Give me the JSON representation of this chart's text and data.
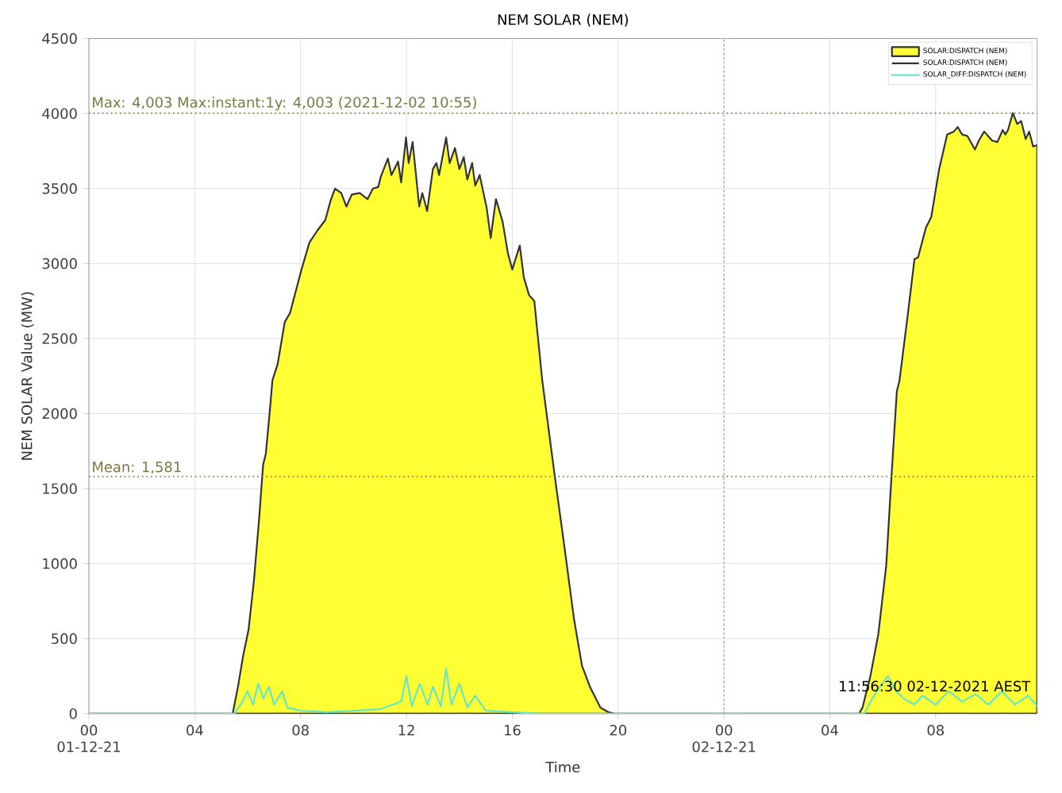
{
  "chart_data": {
    "type": "area",
    "title": "NEM SOLAR (NEM)",
    "xlabel": "Time",
    "ylabel": "NEM SOLAR Value (MW)",
    "xlim": [
      "2021-12-01T00:00",
      "2021-12-02T11:50"
    ],
    "ylim": [
      0,
      4500
    ],
    "xticks": [
      {
        "value": "2021-12-01T00:00",
        "label": "00\n01-12-21"
      },
      {
        "value": "2021-12-01T04:00",
        "label": "04"
      },
      {
        "value": "2021-12-01T08:00",
        "label": "08"
      },
      {
        "value": "2021-12-01T12:00",
        "label": "12"
      },
      {
        "value": "2021-12-01T16:00",
        "label": "16"
      },
      {
        "value": "2021-12-01T20:00",
        "label": "20"
      },
      {
        "value": "2021-12-02T00:00",
        "label": "00\n02-12-21"
      },
      {
        "value": "2021-12-02T04:00",
        "label": "04"
      },
      {
        "value": "2021-12-02T08:00",
        "label": "08"
      }
    ],
    "yticks": [
      0,
      500,
      1000,
      1500,
      2000,
      2500,
      3000,
      3500,
      4000,
      4500
    ],
    "grid": true,
    "legend": "top right",
    "marker": "none",
    "line_style": "solid",
    "series": [
      {
        "name": "SOLAR:DISPATCH (NEM)",
        "color": "#ffff33",
        "x": [
          "2021-12-01T00:00",
          "2021-12-01T05:26",
          "2021-12-01T05:38",
          "2021-12-01T05:50",
          "2021-12-01T06:02",
          "2021-12-01T06:14",
          "2021-12-01T06:26",
          "2021-12-01T06:35",
          "2021-12-01T06:41",
          "2021-12-01T06:50",
          "2021-12-01T06:56",
          "2021-12-01T07:08",
          "2021-12-01T07:24",
          "2021-12-01T07:36",
          "2021-12-01T08:02",
          "2021-12-01T08:20",
          "2021-12-01T08:38",
          "2021-12-01T08:56",
          "2021-12-01T09:08",
          "2021-12-01T09:18",
          "2021-12-01T09:32",
          "2021-12-01T09:44",
          "2021-12-01T09:56",
          "2021-12-01T10:14",
          "2021-12-01T10:32",
          "2021-12-01T10:44",
          "2021-12-01T10:56",
          "2021-12-01T11:02",
          "2021-12-01T11:18",
          "2021-12-01T11:26",
          "2021-12-01T11:41",
          "2021-12-01T11:48",
          "2021-12-01T11:59",
          "2021-12-01T12:05",
          "2021-12-01T12:14",
          "2021-12-01T12:29",
          "2021-12-01T12:36",
          "2021-12-01T12:47",
          "2021-12-01T13:00",
          "2021-12-01T13:08",
          "2021-12-01T13:14",
          "2021-12-01T13:30",
          "2021-12-01T13:38",
          "2021-12-01T13:50",
          "2021-12-01T14:00",
          "2021-12-01T14:10",
          "2021-12-01T14:18",
          "2021-12-01T14:29",
          "2021-12-01T14:36",
          "2021-12-01T14:46",
          "2021-12-01T15:02",
          "2021-12-01T15:11",
          "2021-12-01T15:23",
          "2021-12-01T15:38",
          "2021-12-01T15:50",
          "2021-12-01T16:00",
          "2021-12-01T16:17",
          "2021-12-01T16:26",
          "2021-12-01T16:38",
          "2021-12-01T16:50",
          "2021-12-01T16:56",
          "2021-12-01T17:08",
          "2021-12-01T17:36",
          "2021-12-01T17:56",
          "2021-12-01T18:20",
          "2021-12-01T18:38",
          "2021-12-01T18:56",
          "2021-12-01T19:20",
          "2021-12-01T19:38",
          "2021-12-01T19:54",
          "2021-12-02T05:06",
          "2021-12-02T05:14",
          "2021-12-02T05:32",
          "2021-12-02T05:50",
          "2021-12-02T06:08",
          "2021-12-02T06:20",
          "2021-12-02T06:32",
          "2021-12-02T06:38",
          "2021-12-02T06:56",
          "2021-12-02T07:12",
          "2021-12-02T07:20",
          "2021-12-02T07:38",
          "2021-12-02T07:50",
          "2021-12-02T08:08",
          "2021-12-02T08:26",
          "2021-12-02T08:41",
          "2021-12-02T08:50",
          "2021-12-02T09:00",
          "2021-12-02T09:12",
          "2021-12-02T09:29",
          "2021-12-02T09:38",
          "2021-12-02T09:50",
          "2021-12-02T10:08",
          "2021-12-02T10:20",
          "2021-12-02T10:32",
          "2021-12-02T10:38",
          "2021-12-02T10:44",
          "2021-12-02T10:55",
          "2021-12-02T11:05",
          "2021-12-02T11:14",
          "2021-12-02T11:24",
          "2021-12-02T11:32",
          "2021-12-02T11:41",
          "2021-12-02T11:50"
        ],
        "values": [
          0,
          0,
          180,
          390,
          560,
          880,
          1300,
          1660,
          1730,
          2010,
          2220,
          2330,
          2610,
          2670,
          2960,
          3140,
          3220,
          3290,
          3420,
          3500,
          3470,
          3380,
          3460,
          3470,
          3430,
          3500,
          3510,
          3580,
          3700,
          3590,
          3680,
          3540,
          3840,
          3670,
          3810,
          3380,
          3470,
          3350,
          3630,
          3670,
          3590,
          3840,
          3670,
          3770,
          3630,
          3710,
          3560,
          3670,
          3520,
          3590,
          3370,
          3170,
          3430,
          3280,
          3070,
          2960,
          3120,
          2910,
          2790,
          2750,
          2570,
          2220,
          1590,
          1160,
          630,
          320,
          180,
          40,
          10,
          0,
          0,
          40,
          250,
          530,
          990,
          1590,
          2150,
          2220,
          2640,
          3030,
          3040,
          3240,
          3310,
          3630,
          3860,
          3880,
          3910,
          3860,
          3850,
          3760,
          3820,
          3880,
          3820,
          3810,
          3890,
          3860,
          3890,
          4003,
          3930,
          3950,
          3830,
          3880,
          3780,
          3790
        ]
      },
      {
        "name": "SOLAR_DIFF:DISPATCH (NEM)",
        "type": "line",
        "color": "#66e6c8",
        "x": [
          "2021-12-01T00:00",
          "2021-12-01T05:30",
          "2021-12-01T05:48",
          "2021-12-01T06:00",
          "2021-12-01T06:12",
          "2021-12-01T06:24",
          "2021-12-01T06:36",
          "2021-12-01T06:48",
          "2021-12-01T07:00",
          "2021-12-01T07:18",
          "2021-12-01T07:30",
          "2021-12-01T08:00",
          "2021-12-01T09:00",
          "2021-12-01T10:00",
          "2021-12-01T11:00",
          "2021-12-01T11:48",
          "2021-12-01T12:00",
          "2021-12-01T12:12",
          "2021-12-01T12:30",
          "2021-12-01T12:48",
          "2021-12-01T13:00",
          "2021-12-01T13:18",
          "2021-12-01T13:30",
          "2021-12-01T13:42",
          "2021-12-01T14:00",
          "2021-12-01T14:18",
          "2021-12-01T14:36",
          "2021-12-01T15:00",
          "2021-12-01T16:00",
          "2021-12-01T17:00",
          "2021-12-02T05:18",
          "2021-12-02T05:36",
          "2021-12-02T05:54",
          "2021-12-02T06:12",
          "2021-12-02T06:30",
          "2021-12-02T06:48",
          "2021-12-02T07:12",
          "2021-12-02T07:30",
          "2021-12-02T08:00",
          "2021-12-02T08:30",
          "2021-12-02T09:00",
          "2021-12-02T09:30",
          "2021-12-02T10:00",
          "2021-12-02T10:30",
          "2021-12-02T11:00",
          "2021-12-02T11:30",
          "2021-12-02T11:50"
        ],
        "values": [
          0,
          0,
          80,
          150,
          60,
          200,
          100,
          180,
          60,
          150,
          40,
          20,
          10,
          20,
          30,
          80,
          250,
          50,
          200,
          60,
          180,
          50,
          300,
          60,
          200,
          40,
          120,
          20,
          10,
          0,
          0,
          100,
          180,
          250,
          150,
          100,
          60,
          120,
          60,
          150,
          80,
          130,
          60,
          150,
          60,
          120,
          50
        ]
      }
    ],
    "ref_lines": [
      {
        "axis": "y",
        "value": 4003,
        "label": "Max: 4,003 Max:instant:1y: 4,003 (2021-12-02 10:55)",
        "color": "#7a7a40",
        "line_style": "dotted"
      },
      {
        "axis": "y",
        "value": 1581,
        "label": "Mean: 1,581",
        "color": "#7a7a40",
        "line_style": "dotted"
      },
      {
        "axis": "x",
        "value": "2021-12-02T00:00",
        "color": "#999999",
        "line_style": "dotted"
      }
    ],
    "annotations": [
      "11:56:30 02-12-2021 AEST"
    ]
  }
}
